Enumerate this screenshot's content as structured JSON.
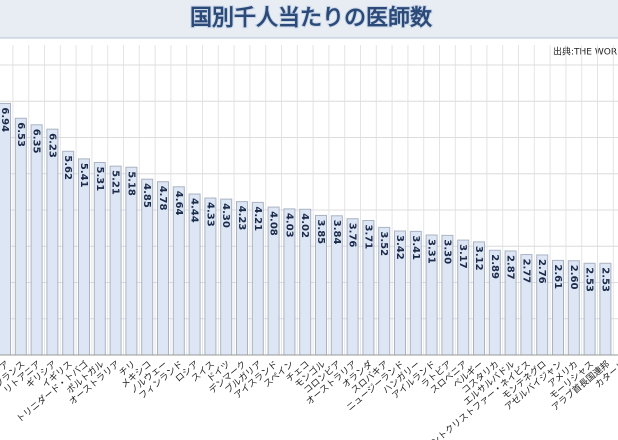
{
  "chart_data": {
    "type": "bar",
    "title": "国別千人当たりの医師数",
    "source": "出典:THE WORLD",
    "categories": [
      "ア",
      "フランス",
      "リトアニア",
      "ギリシア",
      "イギリス",
      "トリニダード・トバゴ",
      "ポルトガル",
      "オーストラリア",
      "チリ",
      "メキシコ",
      "ノルウェー",
      "フィンランド",
      "ロシア",
      "スイス",
      "ドイツ",
      "デンマーク",
      "ブルガリア",
      "アイスランド",
      "スペイン",
      "チェコ",
      "モンゴル",
      "コロンビア",
      "オーストラリア",
      "オランダ",
      "スロバキア",
      "ニュージーランド",
      "ハンガリー",
      "アイルランド",
      "ラトビア",
      "スロベニア",
      "ベルギー",
      "コスタリカ",
      "エルサルバドル",
      "セントクリストファー・ネイビス",
      "モンテネグロ",
      "アゼルバイジャン",
      "アメリカ",
      "モーリシャス",
      "アラブ首長国連邦",
      "カタール"
    ],
    "values": [
      6.94,
      6.53,
      6.35,
      6.23,
      5.62,
      5.41,
      5.31,
      5.21,
      5.18,
      4.85,
      4.78,
      4.64,
      4.44,
      4.33,
      4.3,
      4.23,
      4.21,
      4.08,
      4.03,
      4.02,
      3.85,
      3.84,
      3.76,
      3.71,
      3.52,
      3.42,
      3.41,
      3.31,
      3.3,
      3.17,
      3.12,
      2.89,
      2.87,
      2.77,
      2.76,
      2.61,
      2.6,
      2.53,
      2.53,
      null
    ],
    "value_labels": [
      "6.94",
      "6.53",
      "6.35",
      "6.23",
      "5.62",
      "5.41",
      "5.31",
      "5.21",
      "5.18",
      "4.85",
      "4.78",
      "4.64",
      "4.44",
      "4.33",
      "4.30",
      "4.23",
      "4.21",
      "4.08",
      "4.03",
      "4.02",
      "3.85",
      "3.84",
      "3.76",
      "3.71",
      "3.52",
      "3.42",
      "3.41",
      "3.31",
      "3.30",
      "3.17",
      "3.12",
      "2.89",
      "2.87",
      "2.77",
      "2.76",
      "2.61",
      "2.60",
      "2.53",
      "2.53",
      null
    ],
    "color": "#dde6f5",
    "ylim": [
      0,
      8
    ],
    "yticks": [
      0,
      1,
      2,
      3,
      4,
      5,
      6,
      7,
      8
    ],
    "grid": true
  }
}
